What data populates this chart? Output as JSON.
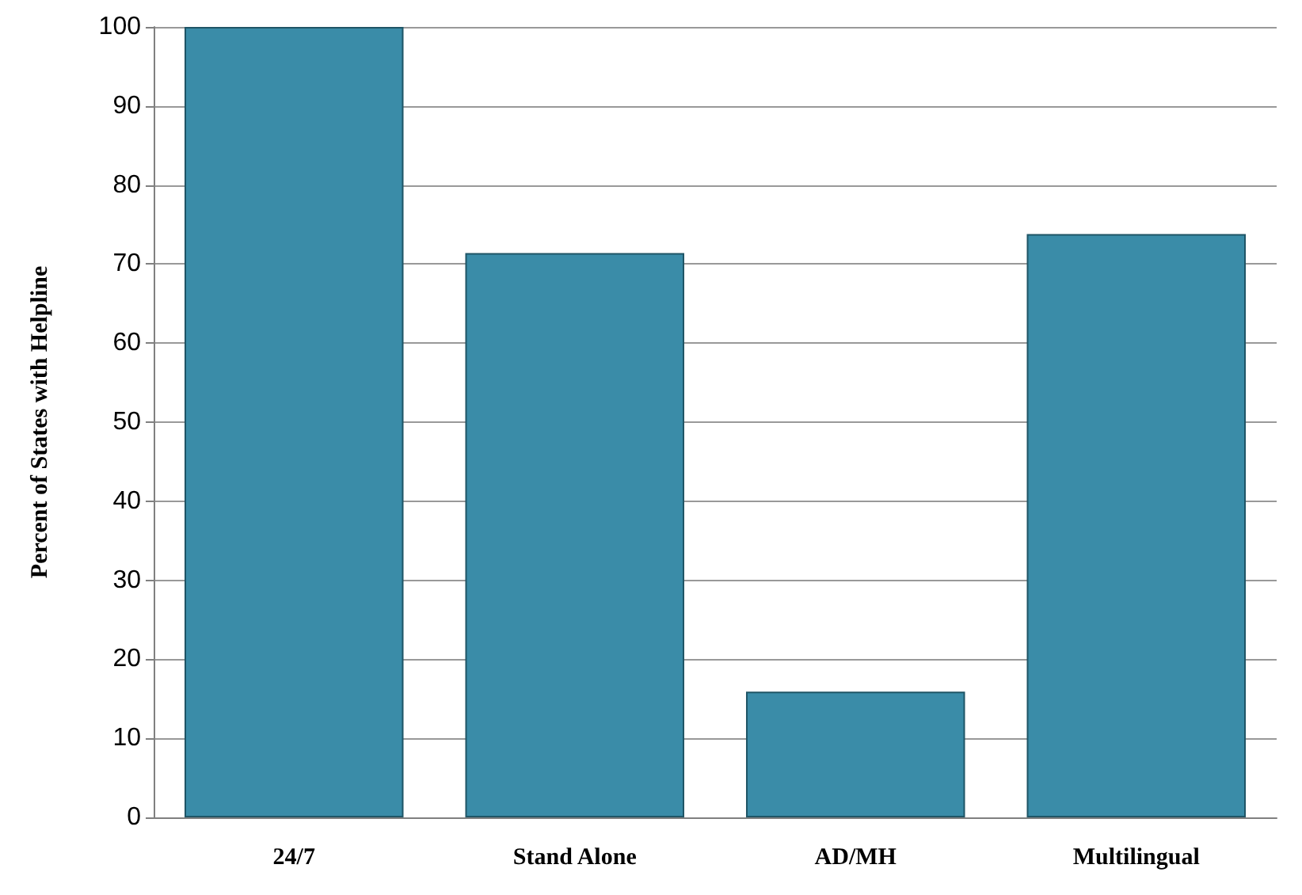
{
  "chart_data": {
    "type": "bar",
    "ylabel": "Percent of States with Helpline",
    "categories": [
      "24/7",
      "Stand Alone",
      "AD/MH",
      "Multilingual"
    ],
    "values": [
      100,
      71.4,
      15.9,
      73.8
    ],
    "color": "#3a8ca8",
    "ylim": [
      0,
      100
    ],
    "yticks": [
      0,
      10,
      20,
      30,
      40,
      50,
      60,
      70,
      80,
      90,
      100
    ],
    "grid": "y"
  }
}
